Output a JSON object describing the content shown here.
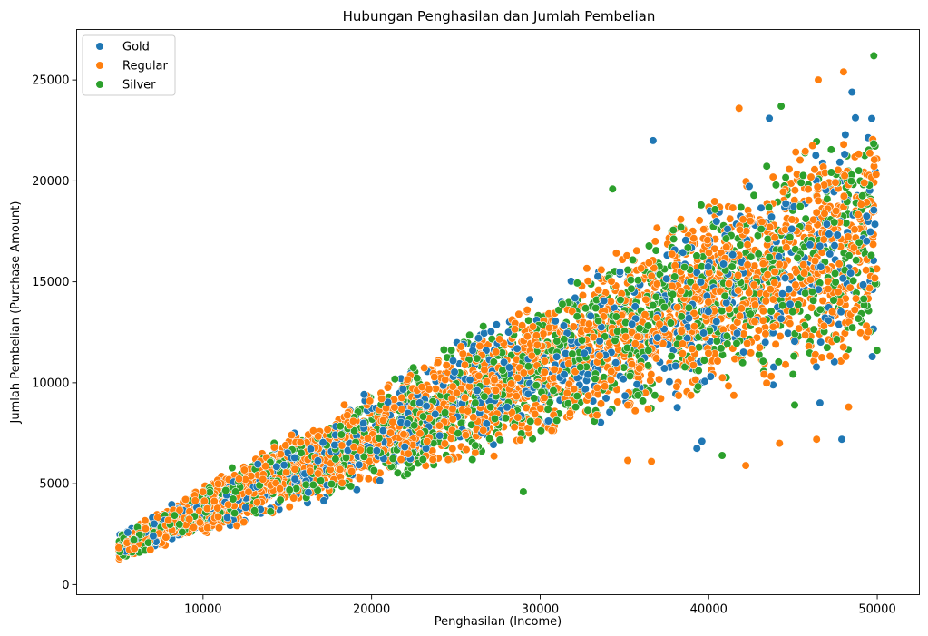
{
  "chart_data": {
    "type": "scatter",
    "title": "Hubungan Penghasilan dan Jumlah Pembelian",
    "xlabel": "Penghasilan (Income)",
    "ylabel": "Jumlah Pembelian (Purchase Amount)",
    "xlim": [
      2500,
      52500
    ],
    "ylim": [
      -500,
      27500
    ],
    "xticks": [
      10000,
      20000,
      30000,
      40000,
      50000
    ],
    "yticks": [
      0,
      5000,
      10000,
      15000,
      20000,
      25000
    ],
    "grid": false,
    "legend": "top-left",
    "series": [
      {
        "name": "Gold",
        "color": "#1f77b4",
        "share": 0.2,
        "seed": 11,
        "notable_points": [
          [
            36700,
            22000
          ],
          [
            47900,
            7200
          ],
          [
            39600,
            7100
          ],
          [
            39300,
            6750
          ],
          [
            46600,
            9000
          ],
          [
            48500,
            24400
          ],
          [
            43600,
            23100
          ]
        ]
      },
      {
        "name": "Regular",
        "color": "#ff7f0e",
        "share": 0.5,
        "seed": 23,
        "notable_points": [
          [
            48000,
            25400
          ],
          [
            46500,
            25000
          ],
          [
            46400,
            7200
          ],
          [
            44200,
            7000
          ],
          [
            42200,
            5900
          ],
          [
            35200,
            6150
          ],
          [
            36600,
            6100
          ],
          [
            48300,
            8800
          ],
          [
            41800,
            23600
          ]
        ]
      },
      {
        "name": "Silver",
        "color": "#2ca02c",
        "share": 0.3,
        "seed": 37,
        "notable_points": [
          [
            49800,
            26200
          ],
          [
            34300,
            19600
          ],
          [
            40800,
            6400
          ],
          [
            29000,
            4600
          ],
          [
            44300,
            23700
          ],
          [
            45100,
            8900
          ]
        ]
      }
    ],
    "distribution": {
      "x_range": [
        5000,
        50000
      ],
      "lower_ratio": [
        0.24,
        0.22
      ],
      "upper_ratio": [
        0.5,
        0.48
      ],
      "point_count": 5000
    }
  }
}
